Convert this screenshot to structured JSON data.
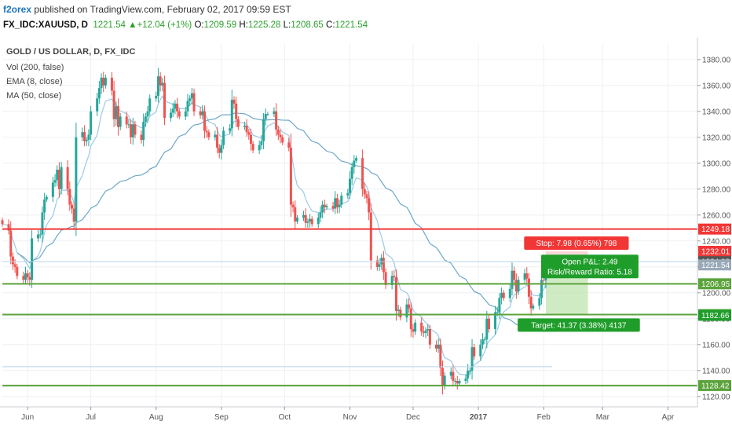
{
  "header": {
    "publisher": "f2orex",
    "published_text": " published on TradingView.com, February 02, 2017 09:59 EST",
    "symbol": "FX_IDC:XAUUSD, D",
    "last": "1221.54",
    "change": "+12.04 (+1%)",
    "open_label": "O:",
    "open": "1209.59",
    "high_label": "H:",
    "high": "1225.28",
    "low_label": "L:",
    "low": "1208.65",
    "close_label": "C:",
    "close": "1221.54"
  },
  "legend": {
    "title": "GOLD / US DOLLAR, D, FX_IDC",
    "vol": "Vol (200, false)",
    "ema": "EMA (8, close)",
    "ma": "MA (50, close)"
  },
  "colors": {
    "up": "#26a69a",
    "down": "#ef5350",
    "support": "#5ba33b",
    "resistance": "#f23636",
    "ema": "#9cc9e6",
    "ma": "#6fa8c7",
    "target_zone": "#bfe4b0",
    "stop_box": "#f23636",
    "target_box": "#1f9d2a"
  },
  "chart_data": {
    "type": "candlestick",
    "title": "GOLD / US DOLLAR, D, FX_IDC",
    "ylim": [
      1112,
      1392
    ],
    "y_ticks": [
      1120,
      1140,
      1160,
      1180,
      1200,
      1220,
      1240,
      1260,
      1280,
      1300,
      1320,
      1340,
      1360,
      1380
    ],
    "y_tick_labels": [
      "1120.00",
      "1140.00",
      "1160.00",
      "1180.00",
      "1200.00",
      "1220.00",
      "1240.00",
      "1260.00",
      "1280.00",
      "1300.00",
      "1320.00",
      "1340.00",
      "1360.00",
      "1380.00"
    ],
    "x_labels": [
      "Jun",
      "Jul",
      "Aug",
      "Sep",
      "Oct",
      "Nov",
      "Dec",
      "2017",
      "Feb",
      "Mar",
      "Apr"
    ],
    "x_label_dates": [
      "2016-06-01",
      "2016-07-01",
      "2016-08-01",
      "2016-09-01",
      "2016-10-01",
      "2016-11-01",
      "2016-12-01",
      "2017-01-01",
      "2017-02-01",
      "2017-03-01",
      "2017-04-01"
    ],
    "date_range": [
      "2016-05-20",
      "2017-04-15"
    ],
    "grid": true,
    "closes": [
      [
        "2016-05-20",
        1253
      ],
      [
        "2016-05-23",
        1248
      ],
      [
        "2016-05-24",
        1228
      ],
      [
        "2016-05-25",
        1222
      ],
      [
        "2016-05-26",
        1220
      ],
      [
        "2016-05-27",
        1213
      ],
      [
        "2016-05-30",
        1210
      ],
      [
        "2016-05-31",
        1215
      ],
      [
        "2016-06-01",
        1212
      ],
      [
        "2016-06-02",
        1210
      ],
      [
        "2016-06-03",
        1242
      ],
      [
        "2016-06-06",
        1245
      ],
      [
        "2016-06-07",
        1245
      ],
      [
        "2016-06-08",
        1262
      ],
      [
        "2016-06-09",
        1272
      ],
      [
        "2016-06-10",
        1274
      ],
      [
        "2016-06-13",
        1285
      ],
      [
        "2016-06-14",
        1287
      ],
      [
        "2016-06-15",
        1295
      ],
      [
        "2016-06-16",
        1280
      ],
      [
        "2016-06-17",
        1297
      ],
      [
        "2016-06-20",
        1280
      ],
      [
        "2016-06-21",
        1268
      ],
      [
        "2016-06-22",
        1265
      ],
      [
        "2016-06-23",
        1255
      ],
      [
        "2016-06-24",
        1320
      ],
      [
        "2016-06-27",
        1324
      ],
      [
        "2016-06-28",
        1317
      ],
      [
        "2016-06-29",
        1318
      ],
      [
        "2016-06-30",
        1322
      ],
      [
        "2016-07-01",
        1340
      ],
      [
        "2016-07-04",
        1350
      ],
      [
        "2016-07-05",
        1358
      ],
      [
        "2016-07-06",
        1366
      ],
      [
        "2016-07-07",
        1360
      ],
      [
        "2016-07-08",
        1366
      ],
      [
        "2016-07-11",
        1356
      ],
      [
        "2016-07-12",
        1334
      ],
      [
        "2016-07-13",
        1344
      ],
      [
        "2016-07-14",
        1328
      ],
      [
        "2016-07-15",
        1336
      ],
      [
        "2016-07-18",
        1330
      ],
      [
        "2016-07-19",
        1330
      ],
      [
        "2016-07-20",
        1320
      ],
      [
        "2016-07-21",
        1330
      ],
      [
        "2016-07-22",
        1322
      ],
      [
        "2016-07-25",
        1318
      ],
      [
        "2016-07-26",
        1332
      ],
      [
        "2016-07-27",
        1336
      ],
      [
        "2016-07-28",
        1340
      ],
      [
        "2016-07-29",
        1350
      ],
      [
        "2016-08-01",
        1352
      ],
      [
        "2016-08-02",
        1367
      ],
      [
        "2016-08-03",
        1360
      ],
      [
        "2016-08-04",
        1362
      ],
      [
        "2016-08-05",
        1335
      ],
      [
        "2016-08-08",
        1339
      ],
      [
        "2016-08-09",
        1342
      ],
      [
        "2016-08-10",
        1346
      ],
      [
        "2016-08-11",
        1340
      ],
      [
        "2016-08-12",
        1336
      ],
      [
        "2016-08-15",
        1340
      ],
      [
        "2016-08-16",
        1348
      ],
      [
        "2016-08-17",
        1350
      ],
      [
        "2016-08-18",
        1354
      ],
      [
        "2016-08-19",
        1340
      ],
      [
        "2016-08-22",
        1337
      ],
      [
        "2016-08-23",
        1340
      ],
      [
        "2016-08-24",
        1325
      ],
      [
        "2016-08-25",
        1324
      ],
      [
        "2016-08-26",
        1320
      ],
      [
        "2016-08-29",
        1322
      ],
      [
        "2016-08-30",
        1312
      ],
      [
        "2016-08-31",
        1308
      ],
      [
        "2016-09-01",
        1314
      ],
      [
        "2016-09-02",
        1325
      ],
      [
        "2016-09-05",
        1327
      ],
      [
        "2016-09-06",
        1349
      ],
      [
        "2016-09-07",
        1346
      ],
      [
        "2016-09-08",
        1334
      ],
      [
        "2016-09-09",
        1328
      ],
      [
        "2016-09-12",
        1329
      ],
      [
        "2016-09-13",
        1324
      ],
      [
        "2016-09-14",
        1322
      ],
      [
        "2016-09-15",
        1315
      ],
      [
        "2016-09-16",
        1310
      ],
      [
        "2016-09-19",
        1314
      ],
      [
        "2016-09-20",
        1317
      ],
      [
        "2016-09-21",
        1334
      ],
      [
        "2016-09-22",
        1338
      ],
      [
        "2016-09-23",
        1338
      ],
      [
        "2016-09-26",
        1340
      ],
      [
        "2016-09-27",
        1326
      ],
      [
        "2016-09-28",
        1322
      ],
      [
        "2016-09-29",
        1320
      ],
      [
        "2016-09-30",
        1316
      ],
      [
        "2016-10-03",
        1312
      ],
      [
        "2016-10-04",
        1268
      ],
      [
        "2016-10-05",
        1266
      ],
      [
        "2016-10-06",
        1255
      ],
      [
        "2016-10-07",
        1258
      ],
      [
        "2016-10-10",
        1260
      ],
      [
        "2016-10-11",
        1254
      ],
      [
        "2016-10-12",
        1255
      ],
      [
        "2016-10-13",
        1257
      ],
      [
        "2016-10-14",
        1253
      ],
      [
        "2016-10-17",
        1258
      ],
      [
        "2016-10-18",
        1262
      ],
      [
        "2016-10-19",
        1268
      ],
      [
        "2016-10-20",
        1266
      ],
      [
        "2016-10-21",
        1267
      ],
      [
        "2016-10-24",
        1265
      ],
      [
        "2016-10-25",
        1273
      ],
      [
        "2016-10-26",
        1266
      ],
      [
        "2016-10-27",
        1268
      ],
      [
        "2016-10-28",
        1275
      ],
      [
        "2016-10-31",
        1277
      ],
      [
        "2016-11-01",
        1288
      ],
      [
        "2016-11-02",
        1297
      ],
      [
        "2016-11-03",
        1302
      ],
      [
        "2016-11-04",
        1304
      ],
      [
        "2016-11-07",
        1280
      ],
      [
        "2016-11-08",
        1276
      ],
      [
        "2016-11-09",
        1273
      ],
      [
        "2016-11-10",
        1262
      ],
      [
        "2016-11-11",
        1225
      ],
      [
        "2016-11-14",
        1220
      ],
      [
        "2016-11-15",
        1222
      ],
      [
        "2016-11-16",
        1227
      ],
      [
        "2016-11-17",
        1216
      ],
      [
        "2016-11-18",
        1206
      ],
      [
        "2016-11-21",
        1213
      ],
      [
        "2016-11-22",
        1212
      ],
      [
        "2016-11-23",
        1186
      ],
      [
        "2016-11-24",
        1187
      ],
      [
        "2016-11-25",
        1181
      ],
      [
        "2016-11-28",
        1191
      ],
      [
        "2016-11-29",
        1188
      ],
      [
        "2016-11-30",
        1172
      ],
      [
        "2016-12-01",
        1170
      ],
      [
        "2016-12-02",
        1177
      ],
      [
        "2016-12-05",
        1170
      ],
      [
        "2016-12-06",
        1169
      ],
      [
        "2016-12-07",
        1171
      ],
      [
        "2016-12-08",
        1172
      ],
      [
        "2016-12-09",
        1160
      ],
      [
        "2016-12-12",
        1157
      ],
      [
        "2016-12-13",
        1160
      ],
      [
        "2016-12-14",
        1142
      ],
      [
        "2016-12-15",
        1128
      ],
      [
        "2016-12-16",
        1136
      ],
      [
        "2016-12-19",
        1139
      ],
      [
        "2016-12-20",
        1132
      ],
      [
        "2016-12-21",
        1132
      ],
      [
        "2016-12-22",
        1130
      ],
      [
        "2016-12-23",
        1132
      ],
      [
        "2016-12-26",
        1134
      ],
      [
        "2016-12-27",
        1140
      ],
      [
        "2016-12-28",
        1140
      ],
      [
        "2016-12-29",
        1158
      ],
      [
        "2016-12-30",
        1151
      ],
      [
        "2017-01-02",
        1160
      ],
      [
        "2017-01-03",
        1164
      ],
      [
        "2017-01-04",
        1164
      ],
      [
        "2017-01-05",
        1180
      ],
      [
        "2017-01-06",
        1172
      ],
      [
        "2017-01-09",
        1185
      ],
      [
        "2017-01-10",
        1185
      ],
      [
        "2017-01-11",
        1196
      ],
      [
        "2017-01-12",
        1200
      ],
      [
        "2017-01-13",
        1196
      ],
      [
        "2017-01-16",
        1203
      ],
      [
        "2017-01-17",
        1217
      ],
      [
        "2017-01-18",
        1210
      ],
      [
        "2017-01-19",
        1201
      ],
      [
        "2017-01-20",
        1210
      ],
      [
        "2017-01-23",
        1215
      ],
      [
        "2017-01-24",
        1211
      ],
      [
        "2017-01-25",
        1197
      ],
      [
        "2017-01-26",
        1188
      ],
      [
        "2017-01-27",
        1190
      ],
      [
        "2017-01-30",
        1196
      ],
      [
        "2017-01-31",
        1210
      ],
      [
        "2017-02-01",
        1209.59
      ],
      [
        "2017-02-02",
        1221.54
      ]
    ],
    "ema_label": "EMA (8, close)",
    "ma_label": "MA (50, close)",
    "horizontal_lines": [
      {
        "name": "resistance",
        "value": 1249.18
      },
      {
        "name": "support-1",
        "value": 1206.95
      },
      {
        "name": "support-2",
        "value": 1183.19
      },
      {
        "name": "support-3",
        "value": 1128.42
      }
    ],
    "faint_lines": [
      {
        "value": 1224.03
      },
      {
        "value": 1143,
        "from": "2016-05-20",
        "to": "2017-02-05"
      }
    ],
    "price_tags": [
      {
        "value": 1249.18,
        "label": "1249.18",
        "color": "#f23636"
      },
      {
        "value": 1232.01,
        "label": "1232.01",
        "color": "#f23636"
      },
      {
        "value": 1224.03,
        "label": "1224.03",
        "color": "#555555"
      },
      {
        "value": 1221.54,
        "label": "1221.54",
        "color": "#9aa9b8"
      },
      {
        "value": 1206.95,
        "label": "1206.95",
        "color": "#5ba33b"
      },
      {
        "value": 1183.19,
        "label": "1183.19",
        "color": "#5ba33b"
      },
      {
        "value": 1182.66,
        "label": "1182.66",
        "color": "#1f9d2a"
      },
      {
        "value": 1128.42,
        "label": "1128.42",
        "color": "#5ba33b"
      }
    ],
    "position_tool": {
      "from": "2017-02-02",
      "to": "2017-02-22",
      "entry": 1221.54,
      "stop": 1232.01,
      "target": 1182.66,
      "stop_label": "Stop: 7.98 (0.65%) 798",
      "open_pl_label": "Open P&L: 2.49",
      "risk_reward_label": "Risk/Reward Ratio: 5.18",
      "target_label": "Target: 41.37 (3.38%) 4137"
    }
  }
}
